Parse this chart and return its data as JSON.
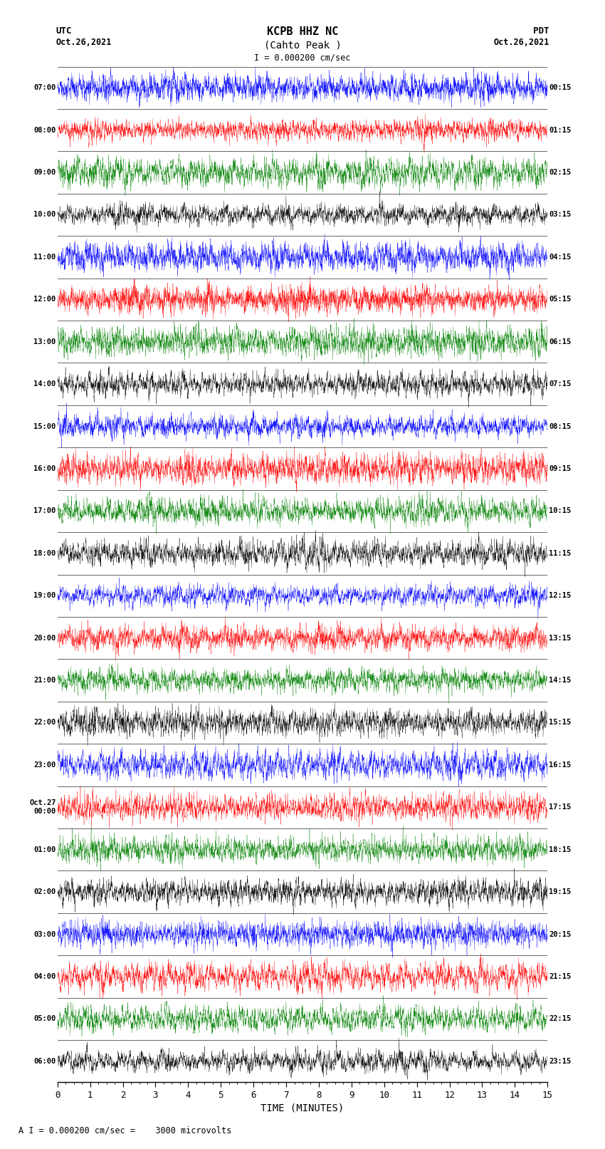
{
  "title_line1": "KCPB HHZ NC",
  "title_line2": "(Cahto Peak )",
  "scale_label": "I = 0.000200 cm/sec",
  "footer_label": "A I = 0.000200 cm/sec =    3000 microvolts",
  "xlabel": "TIME (MINUTES)",
  "xlim": [
    0,
    15
  ],
  "xticks": [
    0,
    1,
    2,
    3,
    4,
    5,
    6,
    7,
    8,
    9,
    10,
    11,
    12,
    13,
    14,
    15
  ],
  "num_rows": 24,
  "minutes_per_row": 15,
  "row_start_utc": [
    "07:00",
    "08:00",
    "09:00",
    "10:00",
    "11:00",
    "12:00",
    "13:00",
    "14:00",
    "15:00",
    "16:00",
    "17:00",
    "18:00",
    "19:00",
    "20:00",
    "21:00",
    "22:00",
    "23:00",
    "Oct.27\n00:00",
    "01:00",
    "02:00",
    "03:00",
    "04:00",
    "05:00",
    "06:00"
  ],
  "row_end_pdt": [
    "00:15",
    "01:15",
    "02:15",
    "03:15",
    "04:15",
    "05:15",
    "06:15",
    "07:15",
    "08:15",
    "09:15",
    "10:15",
    "11:15",
    "12:15",
    "13:15",
    "14:15",
    "15:15",
    "16:15",
    "17:15",
    "18:15",
    "19:15",
    "20:15",
    "21:15",
    "22:15",
    "23:15"
  ],
  "bg_color": "white",
  "colors": [
    "blue",
    "red",
    "green",
    "black"
  ],
  "fig_width": 8.5,
  "fig_height": 16.13,
  "dpi": 100,
  "seed": 42
}
